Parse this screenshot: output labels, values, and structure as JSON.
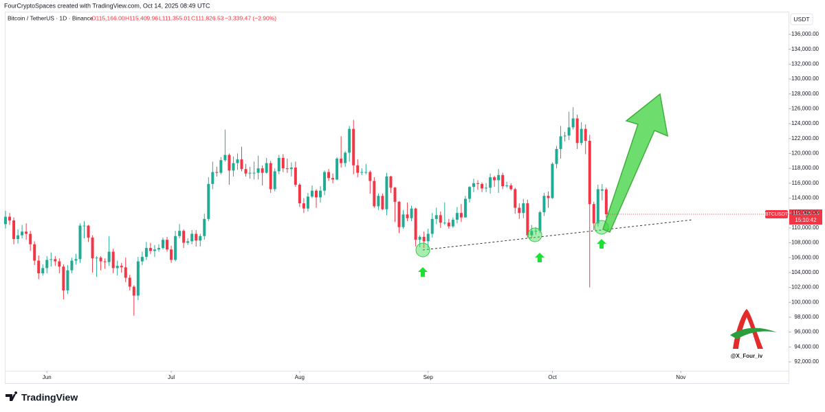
{
  "header": {
    "credit": "FourCryptoSpaces created with TradingView.com, Oct 14, 2025 08:49 UTC"
  },
  "legend": {
    "symbol": "Bitcoin / TetherUS · 1D · Binance",
    "open": "O115,166.00",
    "high": "H115,409.96",
    "low": "L111,355.01",
    "close": "C111,826.53",
    "change": "−3,339.47 (−2.90%)"
  },
  "footer": {
    "brand": "TradingView"
  },
  "watermark": "@X_Four_iv",
  "chart_data": {
    "type": "candlestick",
    "currency": "USDT",
    "up_color": "#22ab94",
    "down_color": "#f23645",
    "xlim": [
      0,
      189
    ],
    "xticks": [
      {
        "value": 10,
        "label": "Jun"
      },
      {
        "value": 40,
        "label": "Jul"
      },
      {
        "value": 71,
        "label": "Aug"
      },
      {
        "value": 102,
        "label": "Sep"
      },
      {
        "value": 132,
        "label": "Oct"
      },
      {
        "value": 163,
        "label": "Nov"
      }
    ],
    "ylim": [
      90800,
      138950
    ],
    "yticks": [
      {
        "value": 92000,
        "label": "92,000.00"
      },
      {
        "value": 94000,
        "label": "94,000.00"
      },
      {
        "value": 96000,
        "label": "96,000.00"
      },
      {
        "value": 98000,
        "label": "98,000.00"
      },
      {
        "value": 100000,
        "label": "100,000.00"
      },
      {
        "value": 102000,
        "label": "102,000.00"
      },
      {
        "value": 104000,
        "label": "104,000.00"
      },
      {
        "value": 106000,
        "label": "106,000.00"
      },
      {
        "value": 108000,
        "label": "108,000.00"
      },
      {
        "value": 110000,
        "label": "110,000.00"
      },
      {
        "value": 112000,
        "label": "112,000.00"
      },
      {
        "value": 114000,
        "label": "114,000.00"
      },
      {
        "value": 116000,
        "label": "116,000.00"
      },
      {
        "value": 118000,
        "label": "118,000.00"
      },
      {
        "value": 120000,
        "label": "120,000.00"
      },
      {
        "value": 122000,
        "label": "122,000.00"
      },
      {
        "value": 124000,
        "label": "124,000.00"
      },
      {
        "value": 126000,
        "label": "126,000.00"
      },
      {
        "value": 128000,
        "label": "128,000.00"
      },
      {
        "value": 130000,
        "label": "130,000.00"
      },
      {
        "value": 132000,
        "label": "132,000.00"
      },
      {
        "value": 134000,
        "label": "134,000.00"
      },
      {
        "value": 136000,
        "label": "136,000.00"
      }
    ],
    "last_price": {
      "symbol": "BTCUSDT",
      "price": {
        "value": 111826.53,
        "label": "111,826.53"
      },
      "countdown": "15:10:42"
    },
    "open": [
      110500,
      111500,
      111000,
      108500,
      109000,
      109500,
      109200,
      107800,
      105600,
      103900,
      104600,
      105700,
      105800,
      105500,
      104800,
      101600,
      104300,
      105600,
      105800,
      110300,
      110300,
      108700,
      105900,
      106000,
      105500,
      105400,
      106800,
      104600,
      104900,
      104700,
      103300,
      102100,
      100900,
      105500,
      106100,
      107300,
      106900,
      107100,
      107300,
      108400,
      107100,
      105700,
      108900,
      109600,
      108000,
      108200,
      109200,
      108300,
      108900,
      111200,
      115900,
      117500,
      117400,
      119100,
      119800,
      117700,
      118700,
      119200,
      117900,
      117300,
      117400,
      117400,
      118000,
      117400,
      118700,
      115200,
      117600,
      119400,
      118000,
      117900,
      118100,
      115800,
      113300,
      112600,
      114200,
      115000,
      114100,
      115000,
      117500,
      116700,
      116500,
      119300,
      118700,
      120100,
      123300,
      118400,
      117400,
      117500,
      117500,
      116300,
      112900,
      114300,
      112500,
      116900,
      115400,
      113500,
      110100,
      111800,
      111300,
      112600,
      108400,
      108800,
      108200,
      109200,
      111200,
      111700,
      110700,
      110700,
      110200,
      111100,
      112000,
      111400,
      113900,
      115500,
      116000,
      115900,
      115300,
      115400,
      116800,
      116400,
      117100,
      115600,
      115700,
      115200,
      112700,
      112000,
      113300,
      109000,
      109600,
      109600,
      112100,
      114300,
      114000,
      118600,
      120600,
      122300,
      122400,
      123500,
      124700,
      121400,
      123300,
      121700,
      113200,
      110600,
      115000,
      115166
    ],
    "high": [
      112300,
      112000,
      111400,
      109800,
      110400,
      110600,
      109600,
      108200,
      106300,
      105100,
      106200,
      106700,
      106200,
      105900,
      105100,
      105000,
      106000,
      106500,
      110600,
      110900,
      110400,
      109000,
      106200,
      106200,
      105900,
      108900,
      107200,
      105600,
      105300,
      106000,
      103700,
      102300,
      106100,
      106800,
      108100,
      108000,
      107700,
      107800,
      108700,
      108800,
      107600,
      109600,
      110500,
      109800,
      108600,
      109700,
      109700,
      109200,
      111900,
      116800,
      118900,
      118200,
      119500,
      123200,
      120000,
      119600,
      120000,
      120900,
      118600,
      118200,
      118900,
      119700,
      118400,
      119400,
      119000,
      118000,
      119800,
      119900,
      119300,
      118800,
      118900,
      116000,
      114000,
      114700,
      115700,
      115200,
      115600,
      117700,
      117900,
      117300,
      119500,
      122300,
      120300,
      123700,
      124500,
      119200,
      118000,
      118600,
      117700,
      116800,
      114600,
      114600,
      117400,
      117000,
      115500,
      113600,
      112400,
      113400,
      113000,
      112700,
      109000,
      109500,
      109900,
      112000,
      112700,
      112200,
      113400,
      111200,
      111400,
      112800,
      113200,
      114300,
      115600,
      116600,
      116400,
      116100,
      116000,
      117300,
      117000,
      117900,
      117400,
      116200,
      116000,
      115400,
      113300,
      113900,
      113800,
      110400,
      110100,
      112300,
      114700,
      114900,
      118800,
      121000,
      123700,
      122900,
      125600,
      126200,
      125200,
      124200,
      123900,
      122500,
      113500,
      115800,
      115900,
      115409.96
    ],
    "low": [
      109900,
      110400,
      107800,
      107900,
      108600,
      108400,
      106900,
      105000,
      103100,
      103600,
      103900,
      104800,
      104900,
      103900,
      100400,
      101100,
      103900,
      105100,
      105300,
      108600,
      108100,
      104000,
      103400,
      104300,
      104500,
      104900,
      103900,
      103600,
      104000,
      102700,
      101600,
      98200,
      100300,
      105000,
      105700,
      106500,
      106100,
      106800,
      107100,
      106800,
      105300,
      105500,
      108600,
      107300,
      107700,
      107800,
      107500,
      107500,
      108400,
      110900,
      115200,
      116900,
      117200,
      118900,
      115800,
      116900,
      117800,
      117600,
      116900,
      116600,
      116500,
      116500,
      115700,
      117300,
      114700,
      114900,
      117200,
      117500,
      117400,
      116900,
      115500,
      112800,
      112000,
      112200,
      114000,
      112700,
      113400,
      114400,
      116300,
      116000,
      116400,
      118100,
      118200,
      118900,
      117200,
      116800,
      117100,
      117200,
      114600,
      112700,
      112400,
      112400,
      111700,
      114700,
      110800,
      109300,
      109900,
      110900,
      110900,
      107500,
      107400,
      107300,
      107300,
      108700,
      110500,
      110000,
      110400,
      109900,
      110000,
      110600,
      110800,
      111400,
      113400,
      114800,
      115100,
      114800,
      114800,
      114600,
      115500,
      114700,
      115200,
      115400,
      115000,
      111900,
      111200,
      111300,
      108700,
      108600,
      109100,
      109300,
      111600,
      112700,
      113900,
      118000,
      119300,
      121600,
      121800,
      123200,
      120600,
      121100,
      119900,
      102000,
      109700,
      110200,
      113700,
      111355.01
    ],
    "close": [
      111500,
      111000,
      108500,
      109000,
      109500,
      109200,
      107800,
      105600,
      103900,
      104600,
      105700,
      105800,
      105500,
      104800,
      101600,
      104300,
      105600,
      105800,
      110300,
      110300,
      108700,
      105900,
      106000,
      105500,
      105400,
      106800,
      104600,
      104900,
      104700,
      103300,
      102100,
      100900,
      105500,
      106100,
      107300,
      106900,
      107100,
      107300,
      108400,
      107100,
      105700,
      108900,
      109600,
      108000,
      108200,
      109200,
      108300,
      108900,
      111200,
      115900,
      117500,
      117400,
      119100,
      119800,
      117700,
      118700,
      119200,
      117900,
      117300,
      117400,
      117400,
      118000,
      117400,
      118700,
      115200,
      117600,
      119400,
      118000,
      117900,
      118100,
      115800,
      113300,
      112600,
      114200,
      115000,
      114100,
      115000,
      117500,
      116700,
      116500,
      119300,
      118700,
      120100,
      123300,
      118400,
      117400,
      117500,
      117500,
      116300,
      112900,
      114300,
      112500,
      116900,
      115400,
      113500,
      110100,
      111800,
      111300,
      112600,
      108400,
      108800,
      108200,
      109200,
      111200,
      111700,
      110700,
      110700,
      110200,
      111100,
      112000,
      111400,
      113900,
      115500,
      116000,
      115900,
      115300,
      115400,
      116800,
      116400,
      117100,
      115600,
      115700,
      115200,
      112700,
      112000,
      113300,
      109000,
      109600,
      109600,
      112100,
      114300,
      114000,
      118600,
      120600,
      122300,
      122400,
      123500,
      124700,
      121400,
      123300,
      121700,
      113200,
      110600,
      115200,
      115166,
      111826.53
    ]
  }
}
